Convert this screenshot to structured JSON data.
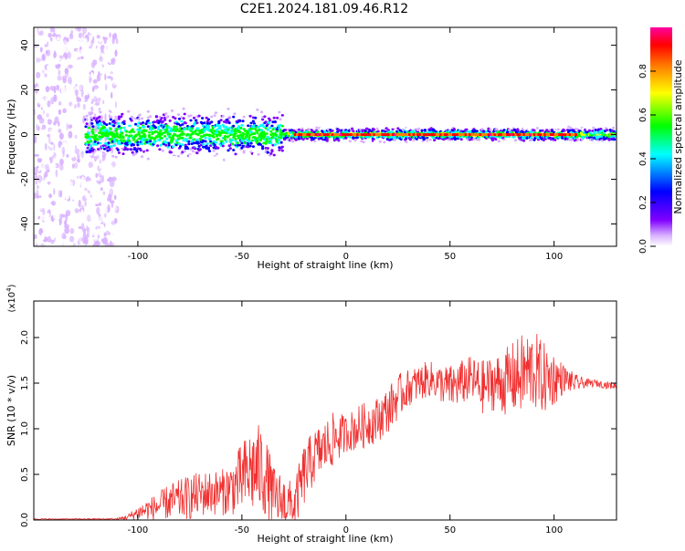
{
  "title": "C2E1.2024.181.09.46.R12",
  "chart_data": [
    {
      "type": "heatmap",
      "xlabel": "Height of straight line (km)",
      "ylabel": "Frequency (Hz)",
      "xlim": [
        -150,
        130
      ],
      "ylim": [
        -50,
        48
      ],
      "xticks": [
        -100,
        -50,
        0,
        50,
        100
      ],
      "yticks": [
        -40,
        -20,
        0,
        20,
        40
      ],
      "colorbar": {
        "label": "Normalized spectral amplitude",
        "range": [
          0.0,
          1.0
        ],
        "ticks": [
          "0.0",
          "0.2",
          "0.4",
          "0.6",
          "0.8"
        ],
        "colormap": [
          "#ffffff",
          "#d8b0ff",
          "#8000ff",
          "#0000ff",
          "#00ffff",
          "#00ff00",
          "#ffff00",
          "#ff8000",
          "#ff0000",
          "#ff00a0"
        ]
      },
      "description_of_structure": {
        "noise_region_x": [
          -150,
          -110
        ],
        "band_center_hz": 0,
        "band_halfwidth_hz": {
          "x_-120_to_-30": 10,
          "x_-30_to_130": 3
        },
        "strong_line_x": [
          -25,
          110
        ]
      }
    },
    {
      "type": "line",
      "xlabel": "Height of straight line (km)",
      "ylabel": "SNR (10 * v/v)",
      "y_scale_label": "(x10^4)",
      "xlim": [
        -150,
        130
      ],
      "ylim": [
        0,
        2.4
      ],
      "xticks": [
        -100,
        -50,
        0,
        50,
        100
      ],
      "yticks": [
        "0.0",
        "0.5",
        "1.0",
        "1.5",
        "2.0"
      ],
      "line_color": "#f03030",
      "series": [
        {
          "x": [
            -150,
            -130,
            -110,
            -105,
            -100,
            -95,
            -90,
            -85,
            -80,
            -75,
            -70,
            -65,
            -60,
            -55,
            -50,
            -45,
            -40,
            -35,
            -30,
            -25,
            -20,
            -15,
            -10,
            -5,
            0,
            5,
            10,
            15,
            20,
            25,
            30,
            35,
            40,
            45,
            50,
            55,
            60,
            65,
            70,
            75,
            80,
            85,
            90,
            95,
            100,
            105,
            110,
            115,
            120,
            125,
            130
          ],
          "values": [
            0.01,
            0.01,
            0.01,
            0.03,
            0.08,
            0.12,
            0.15,
            0.2,
            0.22,
            0.25,
            0.28,
            0.3,
            0.3,
            0.35,
            0.45,
            0.55,
            0.55,
            0.25,
            0.2,
            0.15,
            0.5,
            0.7,
            0.8,
            0.9,
            0.95,
            1.0,
            1.05,
            1.1,
            1.2,
            1.35,
            1.45,
            1.5,
            1.55,
            1.5,
            1.45,
            1.5,
            1.55,
            1.45,
            1.5,
            1.5,
            1.55,
            1.6,
            1.65,
            1.55,
            1.55,
            1.55,
            1.5,
            1.5,
            1.5,
            1.48,
            1.47
          ],
          "spread": [
            0.005,
            0.005,
            0.01,
            0.03,
            0.08,
            0.12,
            0.15,
            0.2,
            0.22,
            0.25,
            0.25,
            0.25,
            0.25,
            0.3,
            0.4,
            0.5,
            0.5,
            0.35,
            0.3,
            0.25,
            0.35,
            0.3,
            0.3,
            0.3,
            0.2,
            0.25,
            0.25,
            0.25,
            0.25,
            0.25,
            0.2,
            0.2,
            0.2,
            0.2,
            0.25,
            0.25,
            0.25,
            0.3,
            0.3,
            0.35,
            0.4,
            0.45,
            0.45,
            0.4,
            0.3,
            0.15,
            0.1,
            0.05,
            0.04,
            0.04,
            0.04
          ]
        }
      ]
    }
  ]
}
